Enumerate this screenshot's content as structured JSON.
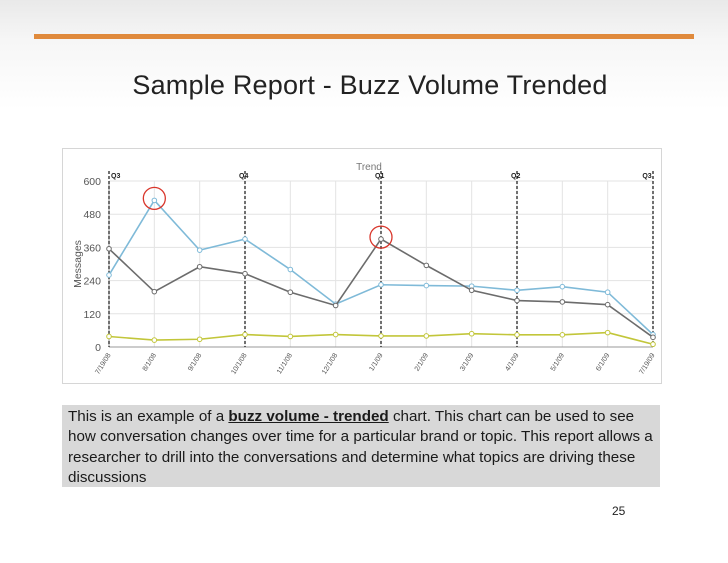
{
  "slide": {
    "title": "Sample Report - Buzz Volume Trended",
    "accent_color": "#e08a3c",
    "page_number": "25"
  },
  "caption": {
    "before": "This is an example of a ",
    "highlight": "buzz volume - trended",
    "after": " chart.  This chart can be used to see how conversation changes over time for a particular brand or topic. This report allows a researcher to drill into the conversations and determine what topics are driving these discussions"
  },
  "chart_data": {
    "type": "line",
    "title": "Trend",
    "ylabel": "Messages",
    "xlabel": "",
    "ylim": [
      0,
      600
    ],
    "yticks": [
      0,
      120,
      240,
      360,
      480,
      600
    ],
    "x": [
      "7/19/08",
      "8/1/08",
      "9/1/08",
      "10/1/08",
      "11/1/08",
      "12/1/08",
      "1/1/09",
      "2/1/09",
      "3/1/09",
      "4/1/09",
      "5/1/09",
      "6/1/09",
      "7/19/09"
    ],
    "series": [
      {
        "color": "#7fbad8",
        "values": [
          260,
          530,
          350,
          390,
          280,
          155,
          225,
          222,
          220,
          205,
          218,
          198,
          45
        ]
      },
      {
        "color": "#6c6c6c",
        "values": [
          355,
          200,
          290,
          265,
          198,
          150,
          390,
          295,
          205,
          168,
          163,
          153,
          35
        ]
      },
      {
        "color": "#c2c63a",
        "values": [
          38,
          25,
          28,
          45,
          38,
          45,
          40,
          40,
          48,
          44,
          44,
          52,
          10
        ]
      }
    ],
    "quarter_markers": [
      {
        "label": "Q3",
        "x_index": 0
      },
      {
        "label": "Q4",
        "x_index": 3
      },
      {
        "label": "Q1",
        "x_index": 6
      },
      {
        "label": "Q2",
        "x_index": 9
      },
      {
        "label": "Q3",
        "x_index": 12
      }
    ],
    "highlight_circles": [
      {
        "series_index": 0,
        "x_index": 1,
        "color": "#d9362b"
      },
      {
        "series_index": 1,
        "x_index": 6,
        "color": "#d9362b"
      }
    ],
    "grid": true,
    "grid_color": "#e3e3e3"
  }
}
